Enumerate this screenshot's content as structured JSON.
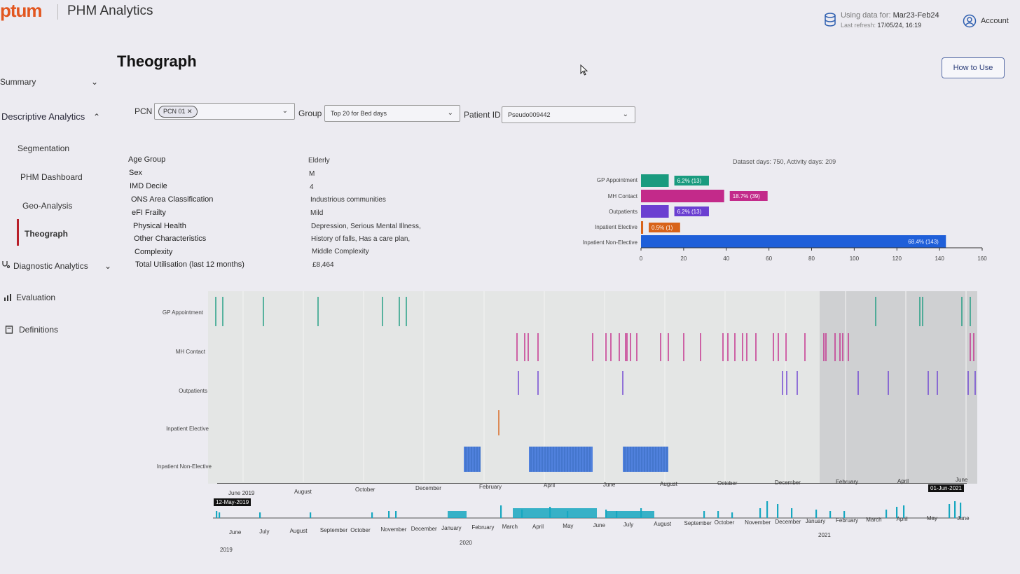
{
  "header": {
    "logo": "ptum",
    "app_title": "PHM Analytics",
    "using_label": "Using data for:",
    "using_value": "Mar23-Feb24",
    "refresh_label": "Last refresh:",
    "refresh_value": "17/05/24, 16:19",
    "account": "Account"
  },
  "how_to_use": "How to Use",
  "sidebar": {
    "summary": "Summary",
    "descriptive": "Descriptive Analytics",
    "segmentation": "Segmentation",
    "phm_dashboard": "PHM Dashboard",
    "geo": "Geo-Analysis",
    "theograph": "Theograph",
    "diagnostic": "Diagnostic Analytics",
    "evaluation": "Evaluation",
    "definitions": "Definitions"
  },
  "page_title": "Theograph",
  "filters": {
    "pcn_label": "PCN",
    "pcn_chip": "PCN 01",
    "group_label": "Group",
    "group_value": "Top 20 for Bed days",
    "patient_label": "Patient ID",
    "patient_value": "Pseudo009442"
  },
  "characteristics": [
    {
      "key": "Age Group",
      "value": "Elderly"
    },
    {
      "key": "Sex",
      "value": "M"
    },
    {
      "key": "IMD Decile",
      "value": "4"
    },
    {
      "key": "ONS Area Classification",
      "value": "Industrious communities"
    },
    {
      "key": "eFI Frailty",
      "value": "Mild"
    },
    {
      "key": "Physical Health",
      "value": "Depression, Serious Mental Illness,"
    },
    {
      "key": "Other Characteristics",
      "value": "History of falls, Has a care plan,"
    },
    {
      "key": "Complexity",
      "value": "Middle Complexity"
    },
    {
      "key": "Total Utilisation (last 12 months)",
      "value": "£8,464"
    }
  ],
  "colors": {
    "gp": "#1a9b7f",
    "mh": "#c32a8a",
    "outpatients": "#6b3fd1",
    "inpatient_elective": "#d8631a",
    "inpatient_non_elective": "#1f5fd9",
    "brand": "#e2561f",
    "nav_active": "#b81f2a",
    "timeline": "#17a7c0"
  },
  "chart_data": [
    {
      "type": "bar",
      "orientation": "horizontal",
      "annotation": "Dataset days: 750, Activity days: 209",
      "categories": [
        "GP Appointment",
        "MH Contact",
        "Outpatients",
        "Inpatient Elective",
        "Inpatient Non-Elective"
      ],
      "values": [
        13,
        39,
        13,
        1,
        143
      ],
      "data_labels": [
        "6.2% (13)",
        "18.7% (39)",
        "6.2% (13)",
        "0.5% (1)",
        "68.4% (143)"
      ],
      "xlim": [
        0,
        160
      ],
      "xticks": [
        "0",
        "20",
        "40",
        "60",
        "80",
        "100",
        "120",
        "140",
        "160"
      ]
    },
    {
      "type": "timeline",
      "categories": [
        "GP Appointment",
        "MH Contact",
        "Outpatients",
        "Inpatient Elective",
        "Inpatient Non-Elective"
      ],
      "x_tick_labels": [
        "June 2019",
        "August",
        "October",
        "December",
        "February",
        "April",
        "June",
        "August",
        "October",
        "December",
        "February",
        "April",
        "June"
      ],
      "selection_start": "12-May-2019",
      "selection_end": "01-Jun-2021",
      "events": {
        "gp": [
          0.003,
          0.012,
          0.066,
          0.138,
          0.223,
          0.245,
          0.254,
          0.873,
          0.932,
          0.935,
          0.987,
          0.998
        ],
        "mh": [
          0.4,
          0.41,
          0.415,
          0.428,
          0.5,
          0.518,
          0.524,
          0.535,
          0.543,
          0.545,
          0.55,
          0.558,
          0.59,
          0.6,
          0.62,
          0.642,
          0.672,
          0.678,
          0.688,
          0.698,
          0.703,
          0.715,
          0.738,
          0.745,
          0.755,
          0.78,
          0.805,
          0.808,
          0.82,
          0.826,
          0.83,
          0.837,
          0.998,
          1.003
        ],
        "outpatients": [
          0.402,
          0.428,
          0.54,
          0.75,
          0.756,
          0.77,
          0.85,
          0.89,
          0.943,
          0.955,
          0.995,
          1.005
        ],
        "inpatient_elective": [
          0.376
        ],
        "inpatient_non_elective_spans": [
          [
            0.33,
            0.352
          ],
          [
            0.416,
            0.5
          ],
          [
            0.54,
            0.6
          ]
        ]
      }
    },
    {
      "type": "timeline-overview",
      "x_tick_labels": [
        "June",
        "July",
        "August",
        "September",
        "October",
        "November",
        "December",
        "January",
        "February",
        "March",
        "April",
        "May",
        "June",
        "July",
        "August",
        "September",
        "October",
        "November",
        "December",
        "January",
        "February",
        "March",
        "April",
        "May",
        "June"
      ],
      "year_labels": [
        "2019",
        "2020",
        "2021"
      ]
    }
  ]
}
